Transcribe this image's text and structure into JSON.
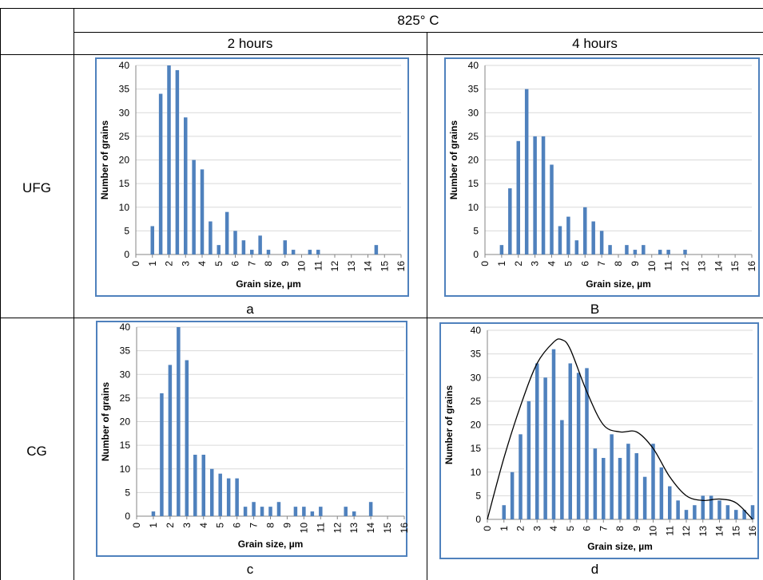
{
  "header": {
    "temperature": "825° C",
    "col1": "2 hours",
    "col2": "4 hours"
  },
  "rows": {
    "row1": "UFG",
    "row2": "CG"
  },
  "captions": {
    "a": "a",
    "b": "B",
    "c": "c",
    "d": "d"
  },
  "colors": {
    "bar": "#4f81bd",
    "border": "#4f81bd",
    "grid": "#d9d9d9",
    "curve": "#000000"
  },
  "chart_data": [
    {
      "id": "a",
      "type": "bar",
      "xlabel": "Grain size, µm",
      "ylabel": "Number of grains",
      "xlim": [
        0,
        16
      ],
      "ylim": [
        0,
        40
      ],
      "yticks": [
        0,
        5,
        10,
        15,
        20,
        25,
        30,
        35,
        40
      ],
      "xticks": [
        0,
        1,
        2,
        3,
        4,
        5,
        6,
        7,
        8,
        9,
        10,
        11,
        12,
        13,
        14,
        15,
        16
      ],
      "grid": true,
      "x": [
        1,
        1.5,
        2,
        2.5,
        3,
        3.5,
        4,
        4.5,
        5,
        5.5,
        6,
        6.5,
        7,
        7.5,
        8,
        8.5,
        9,
        9.5,
        10,
        10.5,
        11,
        11.5,
        12,
        12.5,
        13,
        13.5,
        14,
        14.5,
        15,
        15.5
      ],
      "values": [
        6,
        34,
        40,
        39,
        29,
        20,
        18,
        7,
        2,
        9,
        5,
        3,
        1,
        4,
        1,
        0,
        3,
        1,
        0,
        1,
        1,
        0,
        0,
        0,
        0,
        0,
        0,
        2,
        0,
        0
      ]
    },
    {
      "id": "b",
      "type": "bar",
      "xlabel": "Grain size, µm",
      "ylabel": "Number of grains",
      "xlim": [
        0,
        16
      ],
      "ylim": [
        0,
        40
      ],
      "yticks": [
        0,
        5,
        10,
        15,
        20,
        25,
        30,
        35,
        40
      ],
      "xticks": [
        0,
        1,
        2,
        3,
        4,
        5,
        6,
        7,
        8,
        9,
        10,
        11,
        12,
        13,
        14,
        15,
        16
      ],
      "grid": true,
      "x": [
        1,
        1.5,
        2,
        2.5,
        3,
        3.5,
        4,
        4.5,
        5,
        5.5,
        6,
        6.5,
        7,
        7.5,
        8,
        8.5,
        9,
        9.5,
        10,
        10.5,
        11,
        11.5,
        12,
        12.5,
        13,
        13.5,
        14,
        14.5,
        15,
        15.5
      ],
      "values": [
        2,
        14,
        24,
        35,
        25,
        25,
        19,
        6,
        8,
        3,
        10,
        7,
        5,
        2,
        0,
        2,
        1,
        2,
        0,
        1,
        1,
        0,
        1,
        0,
        0,
        0,
        0,
        0,
        0,
        0
      ]
    },
    {
      "id": "c",
      "type": "bar",
      "xlabel": "Grain size, µm",
      "ylabel": "Number of grains",
      "xlim": [
        0,
        16
      ],
      "ylim": [
        0,
        40
      ],
      "yticks": [
        0,
        5,
        10,
        15,
        20,
        25,
        30,
        35,
        40
      ],
      "xticks": [
        0,
        1,
        2,
        3,
        4,
        5,
        6,
        7,
        8,
        9,
        10,
        11,
        12,
        13,
        14,
        15,
        16
      ],
      "grid": true,
      "x": [
        1,
        1.5,
        2,
        2.5,
        3,
        3.5,
        4,
        4.5,
        5,
        5.5,
        6,
        6.5,
        7,
        7.5,
        8,
        8.5,
        9,
        9.5,
        10,
        10.5,
        11,
        11.5,
        12,
        12.5,
        13,
        13.5,
        14,
        14.5,
        15,
        15.5
      ],
      "values": [
        1,
        26,
        32,
        40,
        33,
        13,
        13,
        10,
        9,
        8,
        8,
        2,
        3,
        2,
        2,
        3,
        0,
        2,
        2,
        1,
        2,
        0,
        0,
        2,
        1,
        0,
        3,
        0,
        0,
        0
      ]
    },
    {
      "id": "d",
      "type": "bar",
      "xlabel": "Grain size, µm",
      "ylabel": "Number of grains",
      "xlim": [
        0,
        16
      ],
      "ylim": [
        0,
        40
      ],
      "yticks": [
        0,
        5,
        10,
        15,
        20,
        25,
        30,
        35,
        40
      ],
      "xticks": [
        0,
        1,
        2,
        3,
        4,
        5,
        6,
        7,
        8,
        9,
        10,
        11,
        12,
        13,
        14,
        15,
        16
      ],
      "grid": true,
      "x": [
        1,
        1.5,
        2,
        2.5,
        3,
        3.5,
        4,
        4.5,
        5,
        5.5,
        6,
        6.5,
        7,
        7.5,
        8,
        8.5,
        9,
        9.5,
        10,
        10.5,
        11,
        11.5,
        12,
        12.5,
        13,
        13.5,
        14,
        14.5,
        15,
        15.5,
        16
      ],
      "values": [
        3,
        10,
        18,
        25,
        33,
        30,
        36,
        21,
        33,
        31,
        32,
        15,
        13,
        18,
        13,
        16,
        14,
        9,
        16,
        11,
        7,
        4,
        2,
        3,
        5,
        5,
        4,
        3,
        2,
        2,
        3
      ],
      "trendline": {
        "x": [
          0,
          1,
          2,
          3,
          4,
          4.5,
          5,
          6,
          7,
          8,
          9,
          10,
          11,
          12,
          13,
          14,
          15,
          16
        ],
        "y": [
          0,
          13,
          24,
          33,
          37.5,
          38,
          36,
          27,
          20,
          18.5,
          18.5,
          15,
          9,
          5,
          4,
          4.3,
          3.5,
          0
        ]
      }
    }
  ]
}
